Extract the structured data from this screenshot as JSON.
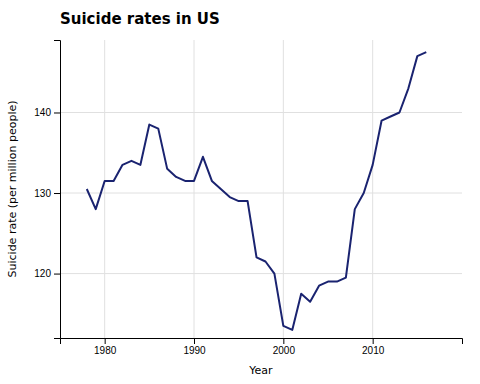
{
  "chart_data": {
    "type": "line",
    "title": "Suicide rates in US",
    "x_label": "Year",
    "y_label": "Suicide rate (per million people)",
    "x": [
      1978,
      1979,
      1980,
      1981,
      1982,
      1983,
      1984,
      1985,
      1986,
      1987,
      1988,
      1989,
      1990,
      1991,
      1992,
      1993,
      1994,
      1995,
      1996,
      1997,
      1998,
      1999,
      2000,
      2001,
      2002,
      2003,
      2004,
      2005,
      2006,
      2007,
      2008,
      2009,
      2010,
      2011,
      2012,
      2013,
      2014,
      2015,
      2016
    ],
    "values": [
      130.5,
      128.0,
      131.5,
      131.5,
      133.5,
      134.0,
      133.5,
      138.5,
      138.0,
      133.0,
      132.0,
      131.5,
      131.5,
      134.5,
      131.5,
      130.5,
      129.5,
      129.0,
      129.0,
      122.0,
      121.5,
      120.0,
      113.5,
      113.0,
      117.5,
      116.5,
      118.5,
      119.0,
      119.0,
      119.5,
      128.0,
      130.0,
      133.5,
      139.0,
      139.5,
      140.0,
      143.0,
      147.0,
      147.5
    ],
    "color": "#1a2370",
    "xlim": [
      1975,
      2020
    ],
    "xticks": [
      1980,
      1990,
      2000,
      2010
    ],
    "ylim": [
      112,
      149
    ],
    "yticks": [
      120,
      130,
      140
    ],
    "grid": true
  }
}
